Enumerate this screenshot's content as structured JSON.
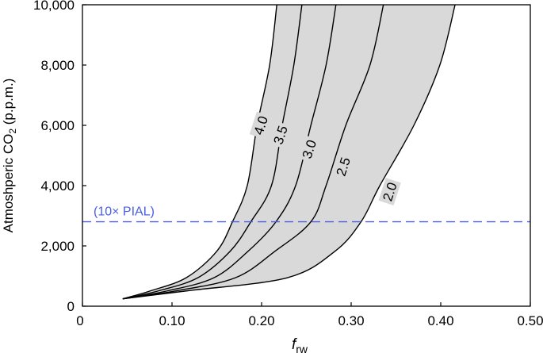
{
  "chart_data": {
    "type": "line",
    "xlabel": {
      "main": "f",
      "sub": "rw"
    },
    "ylabel": {
      "main": "Atmoshperic CO",
      "sub": "2",
      "suffix": " (p.p.m.)"
    },
    "xlim": [
      0,
      0.5
    ],
    "ylim": [
      0,
      10000
    ],
    "xticks": [
      0,
      0.1,
      0.2,
      0.3,
      0.4,
      0.5
    ],
    "xtick_labels": [
      "0",
      "0.10",
      "0.20",
      "0.30",
      "0.40",
      "0.50"
    ],
    "yticks": [
      0,
      2000,
      4000,
      6000,
      8000,
      10000
    ],
    "ytick_labels": [
      "0",
      "2,000",
      "4,000",
      "6,000",
      "8,000",
      "10,000"
    ],
    "grid": false,
    "band_fill_color": "#d9d9d9",
    "series": [
      {
        "name": "4.0",
        "label_at": [
          0.199,
          6000
        ],
        "x": [
          0.045,
          0.076,
          0.116,
          0.15,
          0.1675,
          0.184,
          0.195,
          0.209,
          0.217
        ],
        "y": [
          245,
          510,
          947,
          1825,
          2800,
          4000,
          6000,
          8000,
          10000
        ]
      },
      {
        "name": "3.5",
        "label_at": [
          0.221,
          5680
        ],
        "x": [
          0.045,
          0.085,
          0.129,
          0.165,
          0.188,
          0.211,
          0.223,
          0.236,
          0.245
        ],
        "y": [
          245,
          510,
          947,
          1825,
          2800,
          4000,
          6000,
          8000,
          10000
        ]
      },
      {
        "name": "3.0",
        "label_at": [
          0.253,
          5210
        ],
        "x": [
          0.045,
          0.095,
          0.147,
          0.185,
          0.216,
          0.238,
          0.255,
          0.272,
          0.283
        ],
        "y": [
          245,
          510,
          947,
          1825,
          2800,
          4000,
          6000,
          8000,
          10000
        ]
      },
      {
        "name": "2.5",
        "label_at": [
          0.291,
          4630
        ],
        "x": [
          0.045,
          0.105,
          0.171,
          0.215,
          0.255,
          0.272,
          0.294,
          0.321,
          0.336
        ],
        "y": [
          245,
          510,
          947,
          1825,
          2800,
          4000,
          6000,
          8000,
          10000
        ]
      },
      {
        "name": "2.0",
        "label_at": [
          0.343,
          3800
        ],
        "x": [
          0.045,
          0.117,
          0.229,
          0.282,
          0.311,
          0.332,
          0.37,
          0.399,
          0.416
        ],
        "y": [
          245,
          510,
          947,
          1825,
          2800,
          4000,
          6000,
          8000,
          10000
        ]
      }
    ],
    "reference_line": {
      "y": 2800,
      "label": "(10× PIAL)",
      "color": "#4a5ee8",
      "style": "dashed"
    }
  }
}
